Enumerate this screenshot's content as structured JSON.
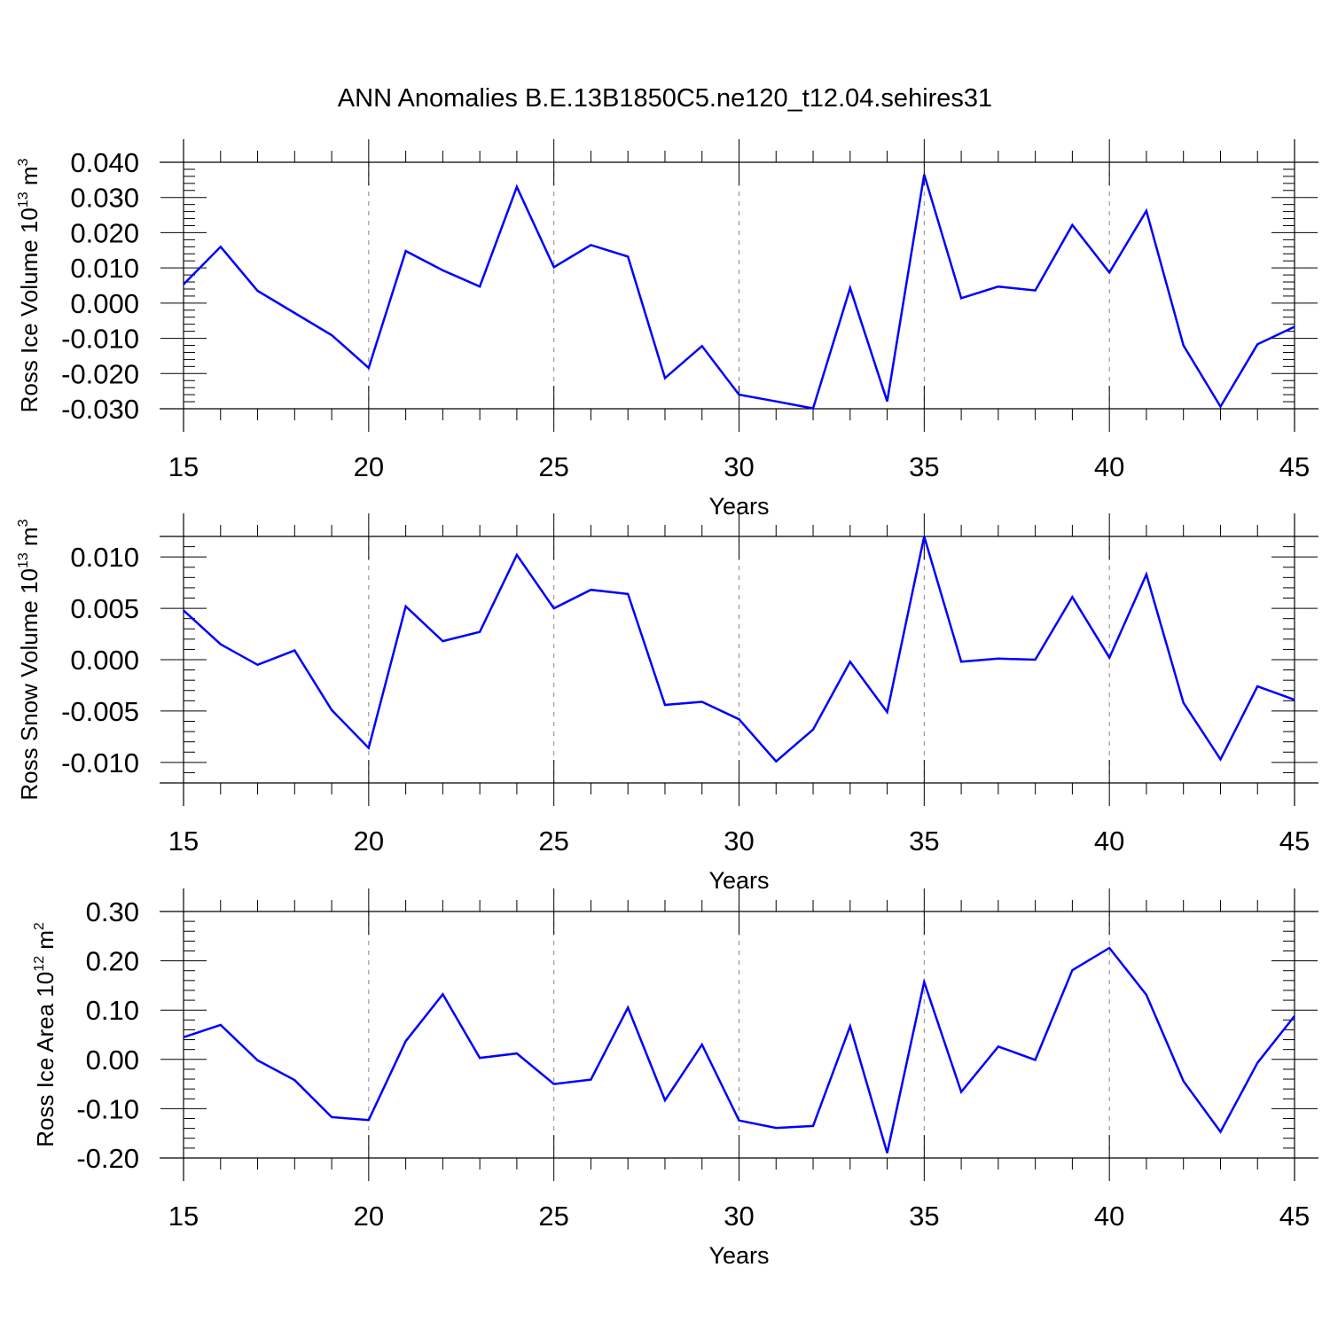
{
  "title": "ANN Anomalies B.E.13B1850C5.ne120_t12.04.sehires31",
  "colors": {
    "line": "#0000ff",
    "axis": "#000000",
    "grid": "#888888"
  },
  "chart_data": [
    {
      "type": "line",
      "name": "ross-ice-volume",
      "xlabel": "Years",
      "ylabel": {
        "main": "Ross Ice Volume 10",
        "exp": "13",
        "unit": " m",
        "unit_exp": "3"
      },
      "xlim": [
        15,
        45
      ],
      "ylim": [
        -0.03,
        0.04
      ],
      "x_ticks": [
        15,
        20,
        25,
        30,
        35,
        40,
        45
      ],
      "x_tick_labels": [
        "15",
        "20",
        "25",
        "30",
        "35",
        "40",
        "45"
      ],
      "y_ticks": [
        -0.03,
        -0.02,
        -0.01,
        0.0,
        0.01,
        0.02,
        0.03,
        0.04
      ],
      "y_tick_labels": [
        "-0.030",
        "-0.020",
        "-0.010",
        "0.000",
        "0.010",
        "0.020",
        "0.030",
        "0.040"
      ],
      "x": [
        15,
        16,
        17,
        18,
        19,
        20,
        21,
        22,
        23,
        24,
        25,
        26,
        27,
        28,
        29,
        30,
        31,
        32,
        33,
        34,
        35,
        36,
        37,
        38,
        39,
        40,
        41,
        42,
        43,
        44,
        45
      ],
      "y": [
        0.0053,
        0.016,
        0.0035,
        -0.0028,
        -0.0091,
        -0.0184,
        0.0148,
        0.0093,
        0.0047,
        0.033,
        0.0102,
        0.0165,
        0.0132,
        -0.0213,
        -0.0122,
        -0.026,
        -0.0279,
        -0.0299,
        0.0043,
        -0.0279,
        0.0365,
        0.0014,
        0.0047,
        0.0036,
        0.0222,
        0.0087,
        0.0262,
        -0.012,
        -0.0294,
        -0.0117,
        -0.0067
      ]
    },
    {
      "type": "line",
      "name": "ross-snow-volume",
      "xlabel": "Years",
      "ylabel": {
        "main": "Ross Snow Volume 10",
        "exp": "13",
        "unit": " m",
        "unit_exp": "3"
      },
      "xlim": [
        15,
        45
      ],
      "ylim": [
        -0.012,
        0.012
      ],
      "x_ticks": [
        15,
        20,
        25,
        30,
        35,
        40,
        45
      ],
      "x_tick_labels": [
        "15",
        "20",
        "25",
        "30",
        "35",
        "40",
        "45"
      ],
      "y_ticks": [
        -0.01,
        -0.005,
        0.0,
        0.005,
        0.01
      ],
      "y_tick_labels": [
        "-0.010",
        "-0.005",
        "0.000",
        "0.005",
        "0.010"
      ],
      "x": [
        15,
        16,
        17,
        18,
        19,
        20,
        21,
        22,
        23,
        24,
        25,
        26,
        27,
        28,
        29,
        30,
        31,
        32,
        33,
        34,
        35,
        36,
        37,
        38,
        39,
        40,
        41,
        42,
        43,
        44,
        45
      ],
      "y": [
        0.0048,
        0.0015,
        -0.0005,
        0.0009,
        -0.0049,
        -0.0086,
        0.0052,
        0.0018,
        0.0027,
        0.0102,
        0.005,
        0.0068,
        0.0064,
        -0.0044,
        -0.0041,
        -0.0058,
        -0.0099,
        -0.0068,
        -0.0002,
        -0.0051,
        0.012,
        -0.0002,
        0.0001,
        0.0,
        0.0061,
        0.0002,
        0.0083,
        -0.0042,
        -0.0097,
        -0.0026,
        -0.0039
      ]
    },
    {
      "type": "line",
      "name": "ross-ice-area",
      "xlabel": "Years",
      "ylabel": {
        "main": "Ross Ice Area 10",
        "exp": "12",
        "unit": " m",
        "unit_exp": "2"
      },
      "xlim": [
        15,
        45
      ],
      "ylim": [
        -0.2,
        0.3
      ],
      "x_ticks": [
        15,
        20,
        25,
        30,
        35,
        40,
        45
      ],
      "x_tick_labels": [
        "15",
        "20",
        "25",
        "30",
        "35",
        "40",
        "45"
      ],
      "y_ticks": [
        -0.2,
        -0.1,
        0.0,
        0.1,
        0.2,
        0.3
      ],
      "y_tick_labels": [
        "-0.20",
        "-0.10",
        "0.00",
        "0.10",
        "0.20",
        "0.30"
      ],
      "x": [
        15,
        16,
        17,
        18,
        19,
        20,
        21,
        22,
        23,
        24,
        25,
        26,
        27,
        28,
        29,
        30,
        31,
        32,
        33,
        34,
        35,
        36,
        37,
        38,
        39,
        40,
        41,
        42,
        43,
        44,
        45
      ],
      "y": [
        0.045,
        0.07,
        -0.002,
        -0.042,
        -0.117,
        -0.123,
        0.037,
        0.132,
        0.003,
        0.012,
        -0.05,
        -0.041,
        0.105,
        -0.083,
        0.03,
        -0.124,
        -0.139,
        -0.135,
        0.067,
        -0.19,
        0.157,
        -0.066,
        0.026,
        -0.001,
        0.181,
        0.226,
        0.131,
        -0.044,
        -0.147,
        -0.007,
        0.088
      ]
    }
  ]
}
